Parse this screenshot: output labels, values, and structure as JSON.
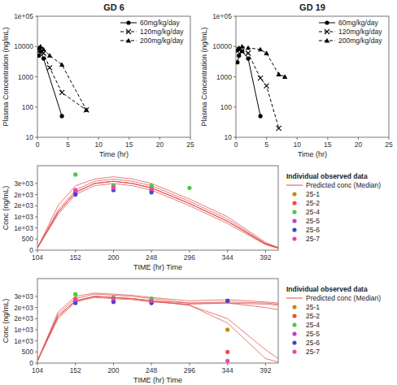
{
  "chart_data": [
    {
      "type": "line",
      "title": "GD 6",
      "xlabel": "Time (hr)",
      "ylabel": "Plasma Concentration (ng/mL)",
      "log": "y",
      "xlim": [
        0,
        25
      ],
      "ylim": [
        10,
        100000
      ],
      "xticks": [
        0,
        5,
        10,
        15,
        20,
        25
      ],
      "yticks": [
        10,
        100,
        1000,
        10000,
        {
          "value": 100000,
          "label": "1e+05"
        }
      ],
      "grid": false,
      "legend": "upper right",
      "series": [
        {
          "name": "60mg/kg/day",
          "color": "#000000",
          "marker": "circle",
          "line_style": "solid",
          "x": [
            0.25,
            0.5,
            1,
            4
          ],
          "values": [
            5000,
            7000,
            4000,
            50
          ]
        },
        {
          "name": "120mg/kg/day",
          "color": "#000000",
          "marker": "x",
          "line_style": "dashed",
          "x": [
            0.25,
            0.5,
            1,
            2,
            4,
            8
          ],
          "values": [
            7000,
            8000,
            6000,
            2000,
            300,
            80
          ]
        },
        {
          "name": "200mg/kg/day",
          "color": "#000000",
          "marker": "triangle",
          "line_style": "dashed",
          "x": [
            0.25,
            0.5,
            1,
            2,
            4,
            8
          ],
          "values": [
            9000,
            10000,
            8000,
            5000,
            2500,
            80
          ]
        }
      ]
    },
    {
      "type": "line",
      "title": "GD 19",
      "xlabel": "Time (hr)",
      "ylabel": "Plasma Concentration (ng/mL)",
      "log": "y",
      "xlim": [
        0,
        25
      ],
      "ylim": [
        10,
        100000
      ],
      "xticks": [
        0,
        5,
        10,
        15,
        20,
        25
      ],
      "yticks": [
        10,
        100,
        1000,
        10000,
        {
          "value": 100000,
          "label": "1e+05"
        }
      ],
      "grid": false,
      "legend": "upper right",
      "series": [
        {
          "name": "60mg/kg/day",
          "color": "#000000",
          "marker": "circle",
          "line_style": "solid",
          "x": [
            0.25,
            0.5,
            1,
            2,
            4
          ],
          "values": [
            3000,
            5000,
            7000,
            4000,
            50
          ]
        },
        {
          "name": "120mg/kg/day",
          "color": "#000000",
          "marker": "x",
          "line_style": "dashed",
          "x": [
            0.25,
            0.5,
            1,
            2,
            4,
            5,
            7
          ],
          "values": [
            7000,
            8000,
            7000,
            6000,
            900,
            500,
            20
          ]
        },
        {
          "name": "200mg/kg/day",
          "color": "#000000",
          "marker": "triangle",
          "line_style": "dashed",
          "x": [
            0.25,
            0.5,
            1,
            2,
            4,
            5,
            7,
            8
          ],
          "values": [
            8000,
            9000,
            10000,
            9000,
            8000,
            6000,
            1200,
            1000
          ]
        }
      ]
    },
    {
      "type": "line",
      "xlabel": "TIME (hr) Time",
      "ylabel": "Conc (ng/mL)",
      "xlim": [
        104,
        408
      ],
      "ylim": [
        0,
        3800
      ],
      "xticks": [
        104,
        152,
        200,
        248,
        296,
        344,
        392
      ],
      "yticks": [
        0,
        500,
        {
          "value": 1000,
          "label": "1e+03"
        },
        {
          "value": 1500,
          "label": "1e+03"
        },
        {
          "value": 2000,
          "label": "2e+03"
        },
        {
          "value": 2500,
          "label": "2e+03"
        },
        {
          "value": 3000,
          "label": "3e+03"
        }
      ],
      "grid": false,
      "legend": "right",
      "legend_title": "Individual observed data",
      "series": [
        {
          "name": "Predicted conc (Median)",
          "type": "line",
          "color": "#e05050",
          "x": [
            104,
            130,
            152,
            176,
            200,
            224,
            248,
            296,
            344,
            392,
            408
          ],
          "values": [
            100,
            1800,
            2700,
            3100,
            3200,
            3100,
            2900,
            2200,
            1400,
            300,
            100
          ]
        },
        {
          "type": "line",
          "color": "#e05050",
          "x": [
            104,
            130,
            152,
            176,
            200,
            224,
            248,
            296,
            344,
            392,
            408
          ],
          "values": [
            100,
            1700,
            2600,
            3000,
            3100,
            3000,
            2800,
            2100,
            1300,
            280,
            100
          ]
        },
        {
          "type": "line",
          "color": "#e05050",
          "x": [
            104,
            130,
            152,
            176,
            200,
            224,
            248,
            296,
            344,
            392,
            408
          ],
          "values": [
            100,
            2000,
            2900,
            3200,
            3300,
            3200,
            3000,
            2300,
            1500,
            350,
            120
          ]
        },
        {
          "type": "line",
          "color": "#e05050",
          "x": [
            104,
            130,
            152,
            176,
            200,
            224,
            248,
            296,
            344,
            392,
            408
          ],
          "values": [
            100,
            1700,
            2600,
            3000,
            3100,
            3000,
            2800,
            2100,
            1300,
            280,
            100
          ]
        },
        {
          "type": "line",
          "color": "#e05050",
          "x": [
            104,
            130,
            152,
            176,
            200,
            224,
            248,
            296,
            344,
            392,
            408
          ],
          "values": [
            100,
            1600,
            2500,
            2900,
            3000,
            2900,
            2700,
            2000,
            1200,
            250,
            80
          ]
        },
        {
          "type": "line",
          "color": "#e05050",
          "x": [
            104,
            130,
            152,
            176,
            200,
            224,
            248,
            296,
            344,
            392,
            408
          ],
          "values": [
            100,
            1700,
            2600,
            3000,
            3100,
            3000,
            2800,
            2100,
            1300,
            280,
            100
          ]
        },
        {
          "name": "25-1",
          "type": "scatter",
          "marker": "circle",
          "color": "#cc8800",
          "x": [
            152,
            200,
            248
          ],
          "values": [
            2700,
            2900,
            2800
          ]
        },
        {
          "name": "25-2",
          "type": "scatter",
          "marker": "circle",
          "color": "#ff4444",
          "x": [
            152,
            200,
            248
          ],
          "values": [
            2600,
            2900,
            2700
          ]
        },
        {
          "name": "25-4",
          "type": "scatter",
          "marker": "circle",
          "color": "#44cc44",
          "x": [
            152,
            200,
            248,
            296
          ],
          "values": [
            3400,
            2900,
            2900,
            2800
          ]
        },
        {
          "name": "25-5",
          "type": "scatter",
          "marker": "circle",
          "color": "#bb44bb",
          "x": [
            152,
            200,
            248
          ],
          "values": [
            2600,
            2800,
            2700
          ]
        },
        {
          "name": "25-6",
          "type": "scatter",
          "marker": "circle",
          "color": "#4444cc",
          "x": [
            152,
            200,
            248
          ],
          "values": [
            2500,
            2700,
            2600
          ]
        },
        {
          "name": "25-7",
          "type": "scatter",
          "marker": "circle",
          "color": "#ee44aa",
          "x": [
            152,
            200,
            248
          ],
          "values": [
            2700,
            2800,
            2750
          ]
        }
      ]
    },
    {
      "type": "line",
      "xlabel": "TIME (hr) Time",
      "ylabel": "Conc (ng/mL)",
      "xlim": [
        104,
        408
      ],
      "ylim": [
        0,
        3800
      ],
      "xticks": [
        104,
        152,
        200,
        248,
        296,
        344,
        392
      ],
      "yticks": [
        0,
        500,
        {
          "value": 1000,
          "label": "1e+03"
        },
        {
          "value": 1500,
          "label": "1e+03"
        },
        {
          "value": 2000,
          "label": "2e+03"
        },
        {
          "value": 2500,
          "label": "2e+03"
        },
        {
          "value": 3000,
          "label": "3e+03"
        }
      ],
      "grid": false,
      "legend": "right",
      "legend_title": "Individual observed data",
      "series": [
        {
          "name": "Predicted conc (Median)",
          "type": "line",
          "color": "#e05050",
          "x": [
            104,
            130,
            152,
            176,
            200,
            224,
            248,
            296,
            344,
            392,
            408
          ],
          "values": [
            100,
            2200,
            2900,
            3100,
            3050,
            3000,
            2900,
            2700,
            2700,
            2500,
            2400
          ]
        },
        {
          "type": "line",
          "color": "#e05050",
          "x": [
            104,
            130,
            152,
            176,
            200,
            224,
            248,
            296,
            344,
            392,
            408
          ],
          "values": [
            100,
            2100,
            2800,
            3000,
            2950,
            2900,
            2800,
            2600,
            2000,
            600,
            200
          ]
        },
        {
          "type": "line",
          "color": "#e05050",
          "x": [
            104,
            130,
            152,
            176,
            200,
            224,
            248,
            296,
            344,
            392,
            408
          ],
          "values": [
            100,
            2300,
            3000,
            3150,
            3100,
            3050,
            2950,
            2800,
            2850,
            2750,
            2700
          ]
        },
        {
          "type": "line",
          "color": "#e05050",
          "x": [
            104,
            130,
            152,
            176,
            200,
            224,
            248,
            296,
            344,
            392,
            408
          ],
          "values": [
            100,
            2100,
            2800,
            3000,
            2950,
            2900,
            2800,
            2700,
            2750,
            2700,
            2650
          ]
        },
        {
          "type": "line",
          "color": "#e05050",
          "x": [
            104,
            130,
            152,
            176,
            200,
            224,
            248,
            296,
            344,
            392,
            408
          ],
          "values": [
            100,
            2000,
            2750,
            2950,
            2900,
            2850,
            2750,
            2650,
            2700,
            2650,
            2600
          ]
        },
        {
          "type": "line",
          "color": "#e05050",
          "x": [
            104,
            130,
            152,
            176,
            200,
            224,
            248,
            296,
            344,
            392,
            408
          ],
          "values": [
            100,
            2100,
            2800,
            3000,
            2950,
            2900,
            2800,
            2600,
            1800,
            200,
            50
          ]
        },
        {
          "name": "25-1",
          "type": "scatter",
          "marker": "circle",
          "color": "#cc8800",
          "x": [
            152,
            200,
            248,
            344
          ],
          "values": [
            2900,
            2900,
            2800,
            1500
          ]
        },
        {
          "name": "25-2",
          "type": "scatter",
          "marker": "circle",
          "color": "#ff4444",
          "x": [
            152,
            200,
            248,
            344
          ],
          "values": [
            2800,
            2850,
            2750,
            500
          ]
        },
        {
          "name": "25-4",
          "type": "scatter",
          "marker": "circle",
          "color": "#44cc44",
          "x": [
            152,
            200,
            248,
            344
          ],
          "values": [
            3100,
            2950,
            2900,
            2800
          ]
        },
        {
          "name": "25-5",
          "type": "scatter",
          "marker": "circle",
          "color": "#bb44bb",
          "x": [
            152,
            200,
            248,
            344
          ],
          "values": [
            2800,
            2800,
            2750,
            2800
          ]
        },
        {
          "name": "25-6",
          "type": "scatter",
          "marker": "circle",
          "color": "#4444cc",
          "x": [
            152,
            200,
            248,
            344
          ],
          "values": [
            2700,
            2750,
            2700,
            2800
          ]
        },
        {
          "name": "25-7",
          "type": "scatter",
          "marker": "circle",
          "color": "#ee44aa",
          "x": [
            152,
            200,
            248,
            344
          ],
          "values": [
            2850,
            2900,
            2800,
            100
          ]
        }
      ]
    }
  ]
}
